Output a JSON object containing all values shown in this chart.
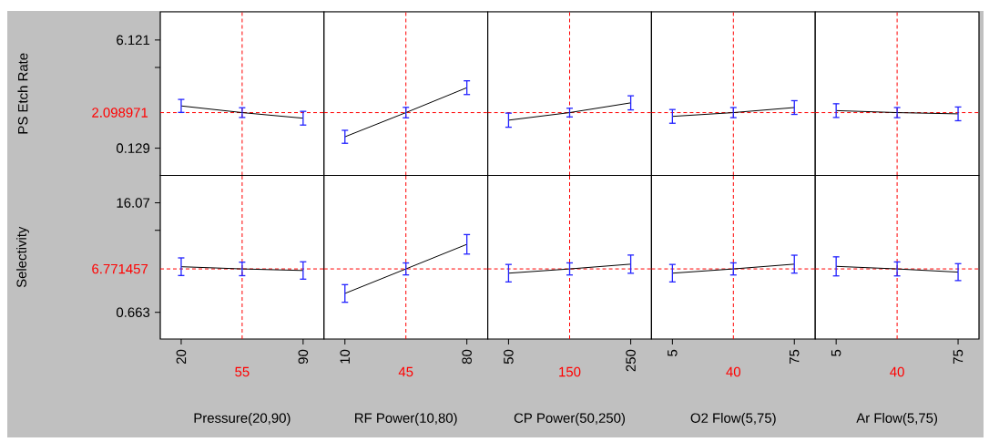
{
  "chart_data": [
    {
      "type": "line",
      "ylabel": "PS Etch Rate",
      "x": [
        20,
        55,
        90
      ],
      "values": [
        2.47,
        2.1,
        1.79
      ],
      "errors": [
        0.36,
        0.27,
        0.38
      ],
      "color": "#000000",
      "xlim": [
        8,
        102
      ],
      "ylim": [
        -1.38,
        7.68
      ],
      "yticks": [
        0.129,
        {
          "value": 4.6,
          "label": null
        },
        6.121
      ],
      "tick_labels": "y",
      "ref_lines": [
        {
          "axis": "x",
          "value": 55,
          "color": "#ff0000",
          "line_style": "dashed"
        },
        {
          "axis": "y",
          "value": 2.098971,
          "label": "2.098971",
          "color": "#ff0000",
          "line_style": "dashed"
        }
      ]
    },
    {
      "type": "line",
      "x": [
        10,
        45,
        80
      ],
      "values": [
        0.76,
        2.1,
        3.48
      ],
      "errors": [
        0.36,
        0.29,
        0.38
      ],
      "color": "#000000",
      "xlim": [
        -2,
        92
      ],
      "ylim": [
        -1.38,
        7.68
      ],
      "tick_labels": false,
      "ref_lines": [
        {
          "axis": "x",
          "value": 45,
          "color": "#ff0000",
          "line_style": "dashed"
        },
        {
          "axis": "y",
          "value": 2.098971,
          "color": "#ff0000",
          "line_style": "dashed"
        }
      ]
    },
    {
      "type": "line",
      "x": [
        50,
        150,
        250
      ],
      "values": [
        1.68,
        2.1,
        2.64
      ],
      "errors": [
        0.39,
        0.24,
        0.39
      ],
      "color": "#000000",
      "xlim": [
        16,
        284
      ],
      "ylim": [
        -1.38,
        7.68
      ],
      "tick_labels": false,
      "ref_lines": [
        {
          "axis": "x",
          "value": 150,
          "color": "#ff0000",
          "line_style": "dashed"
        },
        {
          "axis": "y",
          "value": 2.098971,
          "color": "#ff0000",
          "line_style": "dashed"
        }
      ]
    },
    {
      "type": "line",
      "x": [
        5,
        40,
        75
      ],
      "values": [
        1.89,
        2.1,
        2.38
      ],
      "errors": [
        0.38,
        0.28,
        0.38
      ],
      "color": "#000000",
      "xlim": [
        -7,
        87
      ],
      "ylim": [
        -1.38,
        7.68
      ],
      "tick_labels": false,
      "ref_lines": [
        {
          "axis": "x",
          "value": 40,
          "color": "#ff0000",
          "line_style": "dashed"
        },
        {
          "axis": "y",
          "value": 2.098971,
          "color": "#ff0000",
          "line_style": "dashed"
        }
      ]
    },
    {
      "type": "line",
      "x": [
        5,
        40,
        75
      ],
      "values": [
        2.21,
        2.1,
        2.03
      ],
      "errors": [
        0.38,
        0.28,
        0.38
      ],
      "color": "#000000",
      "xlim": [
        -7,
        87
      ],
      "ylim": [
        -1.38,
        7.68
      ],
      "tick_labels": false,
      "ref_lines": [
        {
          "axis": "x",
          "value": 40,
          "color": "#ff0000",
          "line_style": "dashed"
        },
        {
          "axis": "y",
          "value": 2.098971,
          "color": "#ff0000",
          "line_style": "dashed"
        }
      ]
    },
    {
      "type": "line",
      "xlabel": "Pressure(20,90)",
      "ylabel": "Selectivity",
      "x": [
        20,
        55,
        90
      ],
      "values": [
        7.08,
        6.77,
        6.55
      ],
      "errors": [
        1.24,
        0.95,
        1.22
      ],
      "color": "#000000",
      "xlim": [
        8,
        102
      ],
      "ylim": [
        -3.09,
        19.92
      ],
      "xticks": [
        20,
        90
      ],
      "yticks": [
        0.663,
        {
          "value": 12.2,
          "label": null
        },
        16.07
      ],
      "ref_lines": [
        {
          "axis": "x",
          "value": 55,
          "label": "55",
          "color": "#ff0000",
          "line_style": "dashed"
        },
        {
          "axis": "y",
          "value": 6.771457,
          "label": "6.771457",
          "color": "#ff0000",
          "line_style": "dashed"
        }
      ]
    },
    {
      "type": "line",
      "xlabel": "RF Power(10,80)",
      "x": [
        10,
        45,
        80
      ],
      "values": [
        3.32,
        6.77,
        10.23
      ],
      "errors": [
        1.24,
        0.84,
        1.37
      ],
      "color": "#000000",
      "xlim": [
        -2,
        92
      ],
      "ylim": [
        -3.09,
        19.92
      ],
      "xticks": [
        10,
        80
      ],
      "tick_labels": "x",
      "ref_lines": [
        {
          "axis": "x",
          "value": 45,
          "label": "45",
          "color": "#ff0000",
          "line_style": "dashed"
        },
        {
          "axis": "y",
          "value": 6.771457,
          "color": "#ff0000",
          "line_style": "dashed"
        }
      ]
    },
    {
      "type": "line",
      "xlabel": "CP Power(50,250)",
      "x": [
        50,
        150,
        250
      ],
      "values": [
        6.17,
        6.77,
        7.44
      ],
      "errors": [
        1.23,
        0.85,
        1.28
      ],
      "color": "#000000",
      "xlim": [
        16,
        284
      ],
      "ylim": [
        -3.09,
        19.92
      ],
      "xticks": [
        50,
        250
      ],
      "tick_labels": "x",
      "ref_lines": [
        {
          "axis": "x",
          "value": 150,
          "label": "150",
          "color": "#ff0000",
          "line_style": "dashed"
        },
        {
          "axis": "y",
          "value": 6.771457,
          "color": "#ff0000",
          "line_style": "dashed"
        }
      ]
    },
    {
      "type": "line",
      "xlabel": "O2 Flow(5,75)",
      "x": [
        5,
        40,
        75
      ],
      "values": [
        6.17,
        6.77,
        7.44
      ],
      "errors": [
        1.23,
        0.85,
        1.26
      ],
      "color": "#000000",
      "xlim": [
        -7,
        87
      ],
      "ylim": [
        -3.09,
        19.92
      ],
      "xticks": [
        5,
        75
      ],
      "tick_labels": "x",
      "ref_lines": [
        {
          "axis": "x",
          "value": 40,
          "label": "40",
          "color": "#ff0000",
          "line_style": "dashed"
        },
        {
          "axis": "y",
          "value": 6.771457,
          "color": "#ff0000",
          "line_style": "dashed"
        }
      ]
    },
    {
      "type": "line",
      "xlabel": "Ar Flow(5,75)",
      "x": [
        5,
        40,
        75
      ],
      "values": [
        7.13,
        6.77,
        6.32
      ],
      "errors": [
        1.34,
        0.98,
        1.19
      ],
      "color": "#000000",
      "xlim": [
        -7,
        87
      ],
      "ylim": [
        -3.09,
        19.92
      ],
      "xticks": [
        5,
        75
      ],
      "tick_labels": "x",
      "ref_lines": [
        {
          "axis": "x",
          "value": 40,
          "label": "40",
          "color": "#ff0000",
          "line_style": "dashed"
        },
        {
          "axis": "y",
          "value": 6.771457,
          "color": "#ff0000",
          "line_style": "dashed"
        }
      ]
    }
  ]
}
